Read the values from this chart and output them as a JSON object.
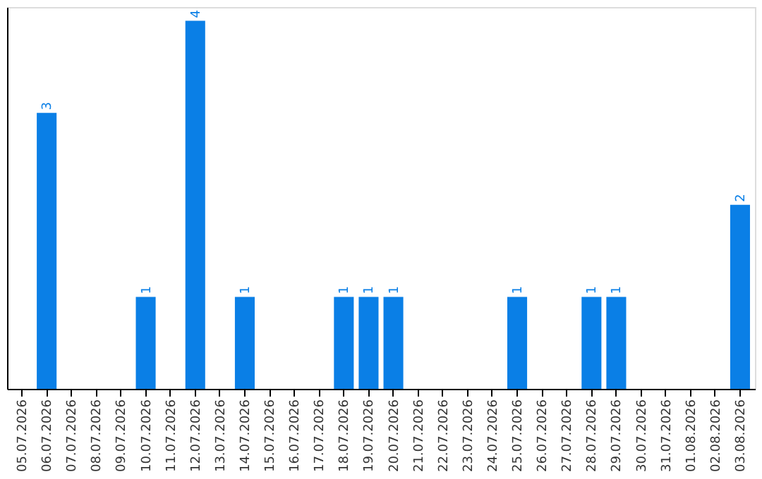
{
  "chart_data": {
    "type": "bar",
    "categories": [
      "05.07.2026",
      "06.07.2026",
      "07.07.2026",
      "08.07.2026",
      "09.07.2026",
      "10.07.2026",
      "11.07.2026",
      "12.07.2026",
      "13.07.2026",
      "14.07.2026",
      "15.07.2026",
      "16.07.2026",
      "17.07.2026",
      "18.07.2026",
      "19.07.2026",
      "20.07.2026",
      "21.07.2026",
      "22.07.2026",
      "23.07.2026",
      "24.07.2026",
      "25.07.2026",
      "26.07.2026",
      "27.07.2026",
      "28.07.2026",
      "29.07.2026",
      "30.07.2026",
      "31.07.2026",
      "01.08.2026",
      "02.08.2026",
      "03.08.2026"
    ],
    "values": [
      0,
      3,
      0,
      0,
      0,
      1,
      0,
      4,
      0,
      1,
      0,
      0,
      0,
      1,
      1,
      1,
      0,
      0,
      0,
      0,
      1,
      0,
      0,
      1,
      1,
      0,
      0,
      0,
      0,
      2
    ],
    "value_labels": [
      null,
      "3",
      null,
      null,
      null,
      "1",
      null,
      "4",
      null,
      "1",
      null,
      null,
      null,
      "1",
      "1",
      "1",
      null,
      null,
      null,
      null,
      "1",
      null,
      null,
      "1",
      "1",
      null,
      null,
      null,
      null,
      "2"
    ],
    "color": "#0a7fe6",
    "ylim": [
      0,
      4.15
    ],
    "tick_labels": "x",
    "grid": false
  }
}
